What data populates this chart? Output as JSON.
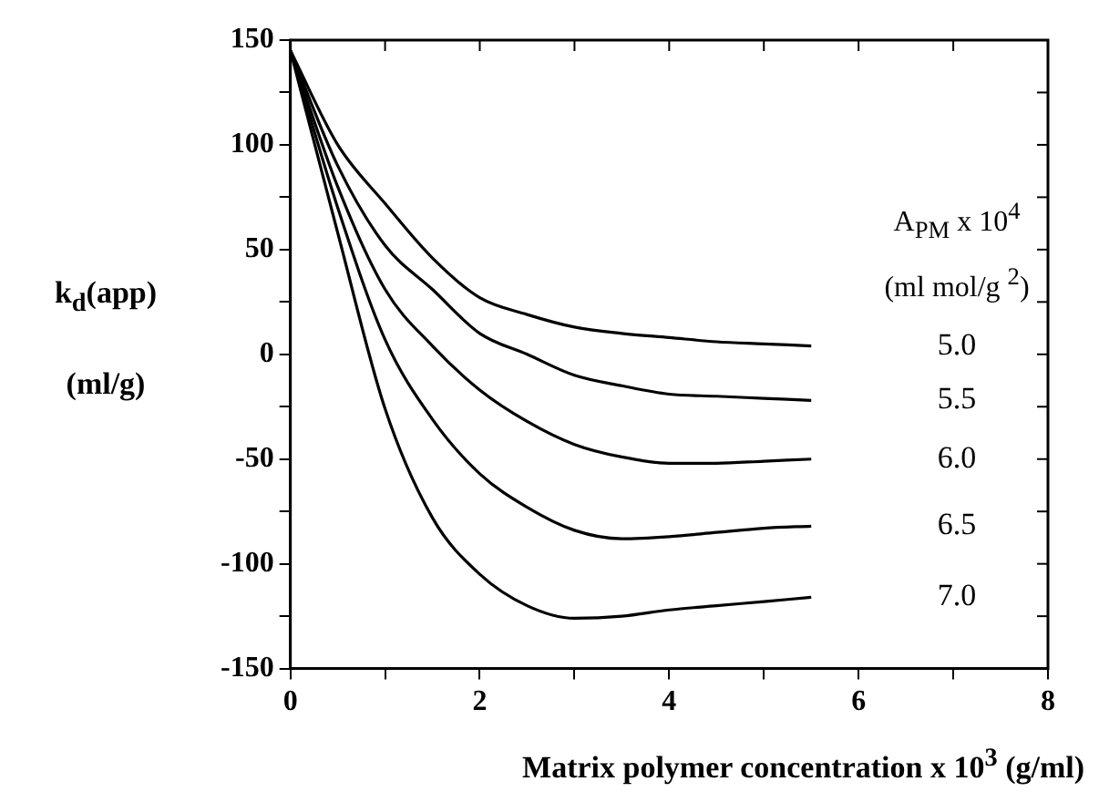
{
  "chart_data": {
    "type": "line",
    "xlabel": "Matrix polymer concentration x 10$^{3}$ (g/ml)",
    "ylabel": "k$_{d}$(app)\n(ml/g)",
    "legend_title": "A$_{PM}$ x 10$^{4}$\n(ml mol/g $^{2}$)",
    "xlim": [
      0,
      8
    ],
    "xticks": [
      0,
      {
        "value": 1,
        "label": null
      },
      2,
      {
        "value": 3,
        "label": null
      },
      4,
      {
        "value": 5,
        "label": null
      },
      6,
      {
        "value": 7,
        "label": null
      },
      8
    ],
    "ylim": [
      -150,
      150
    ],
    "yticks": [
      -150,
      {
        "value": -125,
        "label": null
      },
      -100,
      {
        "value": -75,
        "label": null
      },
      -50,
      {
        "value": -25,
        "label": null
      },
      0,
      {
        "value": 25,
        "label": null
      },
      50,
      {
        "value": 75,
        "label": null
      },
      100,
      {
        "value": 125,
        "label": null
      },
      150
    ],
    "grid": false,
    "legend": "right",
    "marker": "none",
    "line_style": "solid",
    "x": [
      0,
      0.5,
      1,
      1.5,
      2,
      2.5,
      3,
      3.5,
      4,
      4.5,
      5,
      5.5
    ],
    "series": [
      {
        "name": "5.0",
        "color": "#000000",
        "values": [
          145,
          100,
          72,
          46,
          27,
          19,
          13,
          10,
          8,
          6,
          5,
          4
        ]
      },
      {
        "name": "5.5",
        "color": "#000000",
        "values": [
          145,
          90,
          52,
          31,
          10,
          0,
          -10,
          -15,
          -19,
          -20,
          -21,
          -22
        ]
      },
      {
        "name": "6.0",
        "color": "#000000",
        "values": [
          145,
          80,
          31,
          4,
          -17,
          -32,
          -43,
          -49,
          -52,
          -52,
          -51,
          -50
        ]
      },
      {
        "name": "6.5",
        "color": "#000000",
        "values": [
          145,
          70,
          7,
          -31,
          -57,
          -73,
          -84,
          -88,
          -87,
          -85,
          -83,
          -82
        ]
      },
      {
        "name": "7.0",
        "color": "#000000",
        "values": [
          145,
          58,
          -26,
          -78,
          -105,
          -120,
          -126,
          -125,
          -122,
          -120,
          -118,
          -116
        ]
      }
    ]
  }
}
